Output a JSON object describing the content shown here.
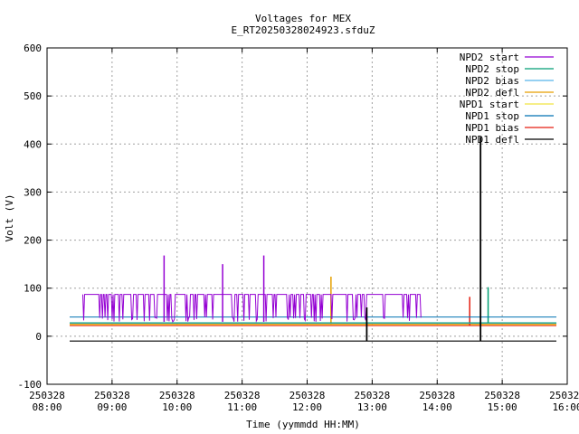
{
  "chart_data": {
    "type": "line",
    "title": "Voltages for MEX",
    "subtitle": "E_RT20250328024923.sfduZ",
    "xlabel": "Time (yymmdd HH:MM)",
    "ylabel": "Volt (V)",
    "xlim": [
      "250328 08:00",
      "250328 16:00"
    ],
    "ylim": [
      -100,
      600
    ],
    "grid": true,
    "legend_position": "top-right",
    "x_ticks": [
      {
        "date": "250328",
        "time": "08:00"
      },
      {
        "date": "250328",
        "time": "09:00"
      },
      {
        "date": "250328",
        "time": "10:00"
      },
      {
        "date": "250328",
        "time": "11:00"
      },
      {
        "date": "250328",
        "time": "12:00"
      },
      {
        "date": "250328",
        "time": "13:00"
      },
      {
        "date": "250328",
        "time": "14:00"
      },
      {
        "date": "250328",
        "time": "15:00"
      },
      {
        "date": "250328",
        "time": "16:00"
      }
    ],
    "y_ticks": [
      "-100",
      "0",
      "100",
      "200",
      "300",
      "400",
      "500",
      "600"
    ],
    "series": [
      {
        "name": "NPD2 start",
        "color": "#9400d3",
        "x_range": [
          "08:33",
          "13:45"
        ],
        "baseline_v": 30,
        "peak_v": 87,
        "spikes": [
          {
            "t": "09:48",
            "v": 168
          },
          {
            "t": "10:42",
            "v": 150
          },
          {
            "t": "11:20",
            "v": 168
          }
        ]
      },
      {
        "name": "NPD2 stop",
        "color": "#009e73",
        "x_range": [
          "08:00",
          "15:50"
        ],
        "level_v": 28,
        "spikes": [
          {
            "t": "14:47",
            "v": 102
          }
        ]
      },
      {
        "name": "NPD2 bias",
        "color": "#56b4e9",
        "x_range": [
          "08:00",
          "15:50"
        ],
        "level_v": 27
      },
      {
        "name": "NPD2 defl",
        "color": "#e69f00",
        "x_range": [
          "08:00",
          "15:50"
        ],
        "level_v": 25,
        "spikes": [
          {
            "t": "12:22",
            "v": 124
          }
        ]
      },
      {
        "name": "NPD1 start",
        "color": "#f0e442",
        "x_range": [
          "08:00",
          "15:50"
        ],
        "level_v": 23
      },
      {
        "name": "NPD1 stop",
        "color": "#0072b2",
        "x_range": [
          "08:00",
          "15:50"
        ],
        "level_v": 40
      },
      {
        "name": "NPD1 bias",
        "color": "#e51e10",
        "x_range": [
          "08:00",
          "15:50"
        ],
        "level_v": 22,
        "spikes": [
          {
            "t": "14:30",
            "v": 82
          }
        ]
      },
      {
        "name": "NPD1 defl",
        "color": "#000000",
        "x_range": [
          "08:00",
          "15:50"
        ],
        "level_v": -10,
        "spikes": [
          {
            "t": "09:35",
            "v": -10
          },
          {
            "t": "12:55",
            "v": 60
          },
          {
            "t": "14:40",
            "v": 415
          }
        ]
      }
    ]
  }
}
